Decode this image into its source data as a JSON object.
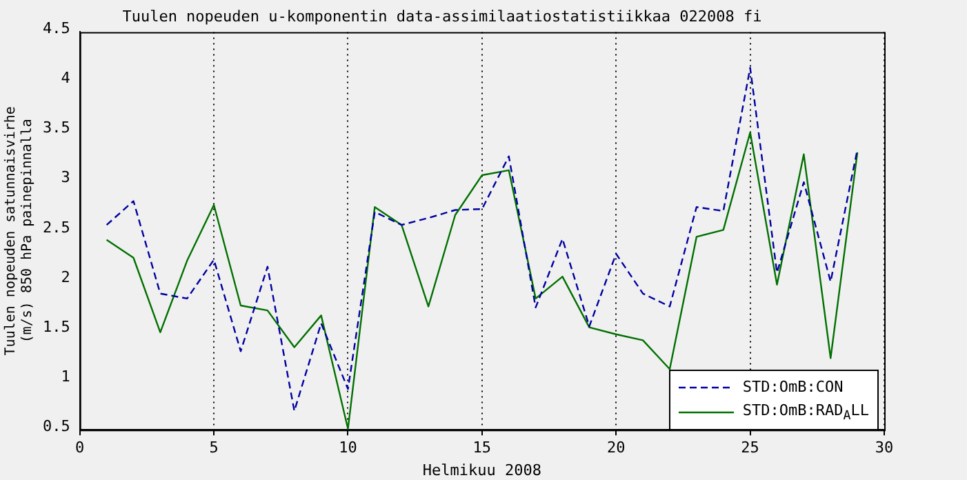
{
  "chart_data": {
    "type": "line",
    "title": "Tuulen nopeuden u-komponentin data-assimilaatiostatistiikkaa 022008 fi",
    "xlabel": "Helmikuu 2008",
    "ylabel": "Tuulen nopeuden satunnaisvirhe (m/s) 850 hPa painepinnalla",
    "x": [
      1,
      2,
      3,
      4,
      5,
      6,
      7,
      8,
      9,
      10,
      11,
      12,
      13,
      14,
      15,
      16,
      17,
      18,
      19,
      20,
      21,
      22,
      23,
      24,
      25,
      26,
      27,
      28,
      29
    ],
    "series": [
      {
        "name": "STD:OmB:CON",
        "color": "#0000a0",
        "line_style": "dashed",
        "values": [
          2.56,
          2.8,
          1.87,
          1.82,
          2.21,
          1.29,
          2.14,
          0.69,
          1.57,
          0.91,
          2.69,
          2.56,
          2.63,
          2.71,
          2.72,
          3.25,
          1.73,
          2.42,
          1.54,
          2.27,
          1.87,
          1.74,
          2.74,
          2.7,
          4.14,
          2.08,
          2.99,
          1.99,
          3.32
        ]
      },
      {
        "name": "STD:OmB:RAD$_{A}$LL",
        "color": "#007000",
        "line_style": "solid",
        "values": [
          2.41,
          2.23,
          1.48,
          2.2,
          2.76,
          1.75,
          1.7,
          1.33,
          1.65,
          0.51,
          2.74,
          2.56,
          1.74,
          2.66,
          3.06,
          3.11,
          1.82,
          2.04,
          1.53,
          1.46,
          1.4,
          1.11,
          2.44,
          2.51,
          3.49,
          1.96,
          3.27,
          1.22,
          3.29
        ]
      }
    ],
    "xlim": [
      0,
      30
    ],
    "xticks": [
      0,
      5,
      10,
      15,
      20,
      25,
      30
    ],
    "ylim": [
      0.5,
      4.5
    ],
    "yticks": [
      0.5,
      1,
      1.5,
      2,
      2.5,
      3,
      3.5,
      4,
      4.5
    ],
    "grid": "x",
    "legend": "bottom right",
    "marker": "none"
  }
}
